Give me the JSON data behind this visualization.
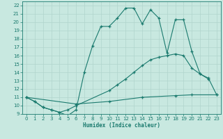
{
  "xlabel": "Humidex (Indice chaleur)",
  "bg_color": "#c8e8e0",
  "line_color": "#1a7a6e",
  "grid_color": "#b0d4cc",
  "xlim": [
    -0.5,
    23.5
  ],
  "ylim": [
    9,
    22.5
  ],
  "xticks": [
    0,
    1,
    2,
    3,
    4,
    5,
    6,
    7,
    8,
    9,
    10,
    11,
    12,
    13,
    14,
    15,
    16,
    17,
    18,
    19,
    20,
    21,
    22,
    23
  ],
  "yticks": [
    9,
    10,
    11,
    12,
    13,
    14,
    15,
    16,
    17,
    18,
    19,
    20,
    21,
    22
  ],
  "line1_x": [
    0,
    1,
    2,
    3,
    4,
    5,
    6,
    7,
    8,
    9,
    10,
    11,
    12,
    13,
    14,
    15,
    16,
    17,
    18,
    19,
    20,
    21,
    22
  ],
  "line1_y": [
    11,
    10.5,
    9.8,
    9.5,
    9.2,
    8.8,
    9.5,
    14.0,
    17.2,
    19.5,
    19.5,
    20.5,
    21.7,
    21.7,
    19.8,
    21.5,
    20.5,
    16.3,
    20.3,
    20.3,
    16.5,
    13.8,
    13.2
  ],
  "line2_x": [
    0,
    1,
    2,
    3,
    4,
    5,
    6,
    10,
    11,
    12,
    13,
    14,
    15,
    16,
    17,
    18,
    19,
    20,
    21,
    22,
    23
  ],
  "line2_y": [
    11,
    10.5,
    9.8,
    9.5,
    9.2,
    9.5,
    10.0,
    11.8,
    12.5,
    13.2,
    14.0,
    14.8,
    15.5,
    15.8,
    16.0,
    16.2,
    16.0,
    14.5,
    13.8,
    13.3,
    11.3
  ],
  "line3_x": [
    0,
    6,
    10,
    14,
    18,
    20,
    23
  ],
  "line3_y": [
    11,
    10.2,
    10.5,
    11.0,
    11.2,
    11.3,
    11.3
  ]
}
